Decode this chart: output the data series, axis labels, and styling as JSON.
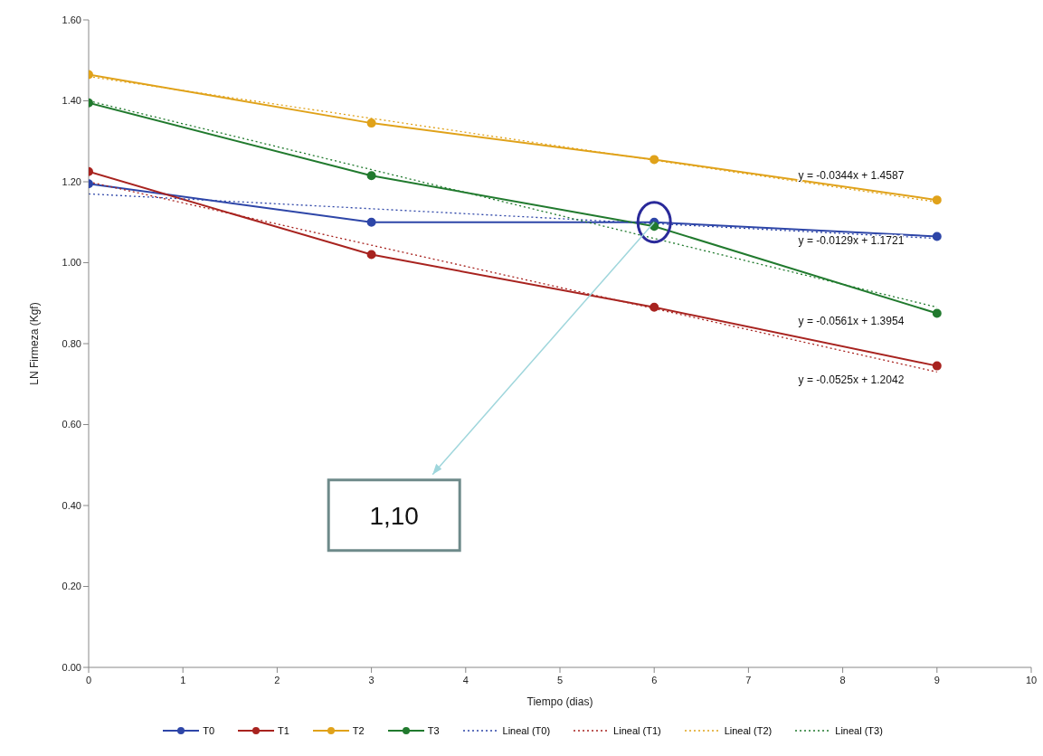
{
  "chart_data": {
    "type": "line",
    "xlabel": "Tiempo (dias)",
    "ylabel": "LN Firmeza  (Kgf)",
    "xlim": [
      0,
      10
    ],
    "xticks": [
      0,
      1,
      2,
      3,
      4,
      5,
      6,
      7,
      8,
      9,
      10
    ],
    "ylim": [
      0,
      1.6
    ],
    "yticks": [
      {
        "value": 0,
        "label": "0.00"
      },
      {
        "value": 0.2,
        "label": "0.20"
      },
      {
        "value": 0.4,
        "label": "0.40"
      },
      {
        "value": 0.6,
        "label": "0.60"
      },
      {
        "value": 0.8,
        "label": "0.80"
      },
      {
        "value": 1,
        "label": "1.00"
      },
      {
        "value": 1.2,
        "label": "1.20"
      },
      {
        "value": 1.4,
        "label": "1.40"
      },
      {
        "value": 1.6,
        "label": "1.60"
      }
    ],
    "grid": false,
    "legend": "bottom",
    "marker": "circle",
    "series": [
      {
        "name": "T0",
        "color": "#2e46a8",
        "x": [
          0,
          3,
          6,
          9
        ],
        "values": [
          1.195,
          1.1,
          1.1,
          1.065
        ]
      },
      {
        "name": "T1",
        "color": "#a8231f",
        "x": [
          0,
          3,
          6,
          9
        ],
        "values": [
          1.225,
          1.02,
          0.89,
          0.745
        ]
      },
      {
        "name": "T2",
        "color": "#e0a21a",
        "x": [
          0,
          3,
          6,
          9
        ],
        "values": [
          1.465,
          1.345,
          1.255,
          1.155
        ]
      },
      {
        "name": "T3",
        "color": "#217a2e",
        "x": [
          0,
          3,
          6,
          9
        ],
        "values": [
          1.395,
          1.215,
          1.09,
          0.875
        ]
      },
      {
        "name": "Lineal (T0)",
        "color": "#2e46a8",
        "x": [
          0,
          9
        ],
        "values": [
          1.17,
          1.06
        ],
        "marker": "none",
        "line_style": "dotted"
      },
      {
        "name": "Lineal (T1)",
        "color": "#a8231f",
        "x": [
          0,
          9
        ],
        "values": [
          1.2,
          0.73
        ],
        "marker": "none",
        "line_style": "dotted"
      },
      {
        "name": "Lineal (T2)",
        "color": "#e0a21a",
        "x": [
          0,
          9
        ],
        "values": [
          1.46,
          1.15
        ],
        "marker": "none",
        "line_style": "dotted"
      },
      {
        "name": "Lineal (T3)",
        "color": "#217a2e",
        "x": [
          0,
          9
        ],
        "values": [
          1.4,
          0.89
        ],
        "marker": "none",
        "line_style": "dotted"
      }
    ],
    "annotations": [
      "y = -0.0344x + 1.4587",
      "y = -0.0129x + 1.1721",
      "y = -0.0561x + 1.3954",
      "y = -0.0525x + 1.2042",
      {
        "text": "1,10",
        "x": 6,
        "y": 1.1
      }
    ]
  }
}
